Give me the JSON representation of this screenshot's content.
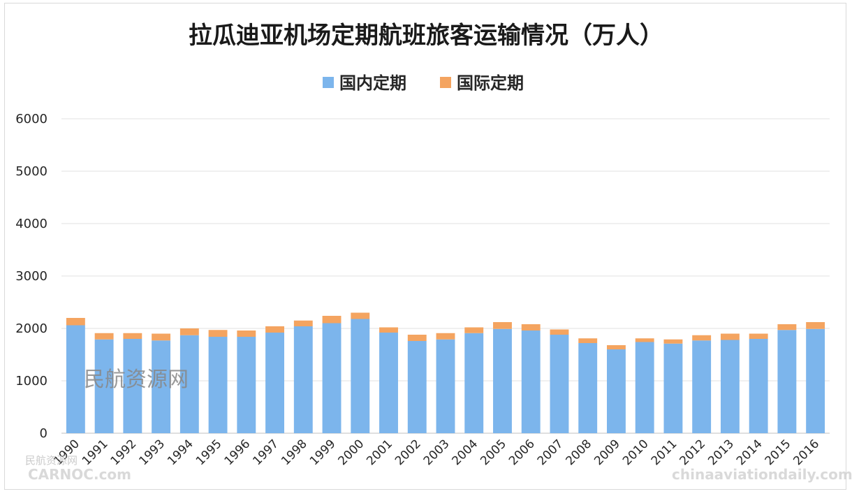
{
  "chart_data": {
    "type": "bar",
    "stacked": true,
    "title": "拉瓜迪亚机场定期航班旅客运输情况（万人）",
    "categories": [
      "1990",
      "1991",
      "1992",
      "1993",
      "1994",
      "1995",
      "1996",
      "1997",
      "1998",
      "1999",
      "2000",
      "2001",
      "2002",
      "2003",
      "2004",
      "2005",
      "2006",
      "2007",
      "2008",
      "2009",
      "2010",
      "2011",
      "2012",
      "2013",
      "2014",
      "2015",
      "2016"
    ],
    "series": [
      {
        "name": "国内定期",
        "color": "#7cb5ec",
        "values": [
          2060,
          1790,
          1800,
          1770,
          1870,
          1840,
          1840,
          1920,
          2040,
          2100,
          2180,
          1920,
          1760,
          1790,
          1910,
          1990,
          1960,
          1880,
          1720,
          1600,
          1740,
          1710,
          1770,
          1780,
          1800,
          1970,
          1990
        ]
      },
      {
        "name": "国际定期",
        "color": "#f4a460",
        "values": [
          140,
          120,
          110,
          130,
          130,
          130,
          120,
          120,
          110,
          140,
          120,
          100,
          120,
          120,
          110,
          130,
          120,
          100,
          90,
          80,
          70,
          80,
          100,
          120,
          100,
          110,
          130
        ]
      }
    ],
    "ylim": [
      0,
      6000
    ],
    "yticks": [
      0,
      1000,
      2000,
      3000,
      4000,
      5000,
      6000
    ],
    "grid": true,
    "legend_position": "top-center"
  },
  "watermarks": {
    "center": "民航资源网",
    "bottom_left_small": "民航资源网",
    "bottom_left": "CARNOC.com",
    "bottom_right": "chinaaviationdaily.com"
  }
}
